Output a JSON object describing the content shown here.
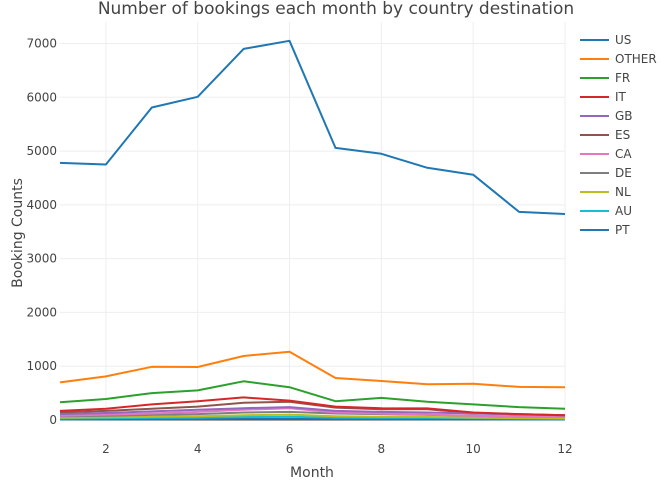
{
  "chart_data": {
    "type": "line",
    "title": "Number of bookings each month by country destination",
    "xlabel": "Month",
    "ylabel": "Booking Counts",
    "xlim": [
      1,
      12
    ],
    "ylim": [
      0,
      7400
    ],
    "x_ticks": [
      2,
      4,
      6,
      8,
      10,
      12
    ],
    "y_ticks": [
      0,
      1000,
      2000,
      3000,
      4000,
      5000,
      6000,
      7000
    ],
    "grid": true,
    "legend_position": "top-right",
    "x": [
      1,
      2,
      3,
      4,
      5,
      6,
      7,
      8,
      9,
      10,
      11,
      12
    ],
    "series": [
      {
        "name": "US",
        "color": "#1f77b4",
        "values": [
          4780,
          4750,
          5810,
          6010,
          6900,
          7050,
          5060,
          4950,
          4690,
          4560,
          3870,
          3830
        ]
      },
      {
        "name": "OTHER",
        "color": "#ff7f0e",
        "values": [
          700,
          810,
          990,
          985,
          1190,
          1270,
          780,
          725,
          665,
          675,
          615,
          610
        ]
      },
      {
        "name": "FR",
        "color": "#2ca02c",
        "values": [
          330,
          390,
          500,
          550,
          720,
          610,
          350,
          410,
          340,
          290,
          240,
          210
        ]
      },
      {
        "name": "IT",
        "color": "#d62728",
        "values": [
          170,
          210,
          290,
          350,
          420,
          360,
          250,
          220,
          215,
          140,
          110,
          90
        ]
      },
      {
        "name": "GB",
        "color": "#9467bd",
        "values": [
          110,
          130,
          160,
          190,
          220,
          240,
          170,
          150,
          140,
          120,
          100,
          90
        ]
      },
      {
        "name": "ES",
        "color": "#8c564b",
        "values": [
          140,
          170,
          210,
          250,
          320,
          340,
          230,
          200,
          200,
          130,
          110,
          90
        ]
      },
      {
        "name": "CA",
        "color": "#e377c2",
        "values": [
          80,
          100,
          120,
          150,
          190,
          220,
          140,
          120,
          100,
          80,
          60,
          55
        ]
      },
      {
        "name": "DE",
        "color": "#7f7f7f",
        "values": [
          70,
          80,
          95,
          110,
          140,
          150,
          120,
          110,
          95,
          80,
          60,
          55
        ]
      },
      {
        "name": "NL",
        "color": "#bcbd22",
        "values": [
          40,
          50,
          60,
          70,
          90,
          100,
          70,
          60,
          55,
          45,
          35,
          30
        ]
      },
      {
        "name": "AU",
        "color": "#17becf",
        "values": [
          30,
          35,
          40,
          45,
          55,
          60,
          45,
          40,
          40,
          35,
          30,
          25
        ]
      },
      {
        "name": "PT",
        "color": "#1f77b4",
        "values": [
          10,
          12,
          15,
          18,
          22,
          25,
          18,
          16,
          14,
          12,
          10,
          9
        ]
      }
    ]
  }
}
